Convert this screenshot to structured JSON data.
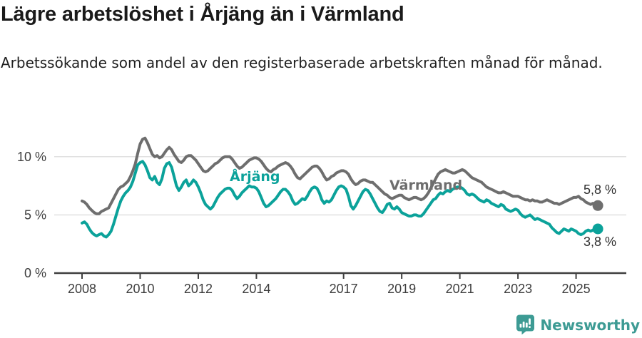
{
  "header": {
    "title": "Lägre arbetslöshet i Årjäng än i Värmland",
    "subtitle": "Arbetssökande som andel av den registerbaserade arbetskraften månad för månad."
  },
  "chart_data": {
    "type": "line",
    "title": "Lägre arbetslöshet i Årjäng än i Värmland",
    "xlabel": "",
    "ylabel": "",
    "x_start_year": 2008,
    "x_step": "monthly",
    "x_range_label": "2008-01 till 2025-10",
    "x_ticks": [
      2008,
      2010,
      2012,
      2014,
      2017,
      2019,
      2021,
      2023,
      2025
    ],
    "y_ticks": [
      0,
      5,
      10
    ],
    "y_tick_labels": [
      "0 %",
      "5 %",
      "10 %"
    ],
    "ylim": [
      0,
      12
    ],
    "grid": "horizontal",
    "legend_position": "inline-labels",
    "colors": {
      "grid": "#e0e0e0",
      "axis": "#3f3f3f",
      "tick_text": "#3d3d3d",
      "value_text": "#2e2e2e"
    },
    "series": [
      {
        "id": "varmland",
        "name": "Värmland",
        "color": "#6e6e6e",
        "end_label": "5,8 %",
        "end_value": 5.8,
        "values": [
          6.2,
          6.1,
          5.9,
          5.6,
          5.4,
          5.2,
          5.1,
          5.1,
          5.3,
          5.4,
          5.5,
          5.6,
          6.0,
          6.4,
          6.8,
          7.2,
          7.4,
          7.5,
          7.7,
          7.9,
          8.3,
          8.8,
          9.4,
          10.3,
          11.1,
          11.5,
          11.6,
          11.2,
          10.7,
          10.2,
          10.0,
          10.1,
          9.9,
          10.0,
          10.3,
          10.6,
          10.8,
          10.6,
          10.2,
          9.9,
          9.6,
          9.5,
          9.7,
          10.0,
          10.1,
          10.1,
          9.9,
          9.7,
          9.4,
          9.1,
          8.8,
          8.7,
          8.8,
          9.0,
          9.2,
          9.4,
          9.5,
          9.7,
          9.9,
          10.0,
          10.0,
          10.0,
          9.8,
          9.5,
          9.2,
          9.0,
          9.1,
          9.3,
          9.5,
          9.7,
          9.8,
          9.9,
          9.9,
          9.8,
          9.6,
          9.3,
          9.0,
          8.8,
          8.7,
          8.9,
          9.0,
          9.2,
          9.3,
          9.4,
          9.5,
          9.4,
          9.2,
          8.9,
          8.5,
          8.2,
          8.1,
          8.3,
          8.5,
          8.7,
          8.9,
          9.1,
          9.2,
          9.2,
          9.0,
          8.7,
          8.3,
          8.0,
          8.1,
          8.3,
          8.4,
          8.6,
          8.7,
          8.8,
          8.8,
          8.7,
          8.5,
          8.1,
          7.8,
          7.6,
          7.7,
          7.9,
          8.0,
          8.0,
          7.9,
          7.8,
          7.8,
          7.6,
          7.4,
          7.2,
          7.0,
          6.8,
          6.7,
          6.5,
          6.4,
          6.5,
          6.6,
          6.7,
          6.7,
          6.5,
          6.4,
          6.3,
          6.4,
          6.5,
          6.5,
          6.4,
          6.3,
          6.4,
          6.6,
          6.9,
          7.3,
          7.7,
          8.1,
          8.5,
          8.7,
          8.8,
          8.9,
          8.8,
          8.7,
          8.6,
          8.6,
          8.7,
          8.8,
          8.9,
          8.8,
          8.6,
          8.4,
          8.2,
          8.1,
          8.0,
          7.9,
          7.8,
          7.6,
          7.4,
          7.3,
          7.2,
          7.1,
          7.0,
          6.9,
          6.9,
          7.0,
          6.9,
          6.8,
          6.7,
          6.6,
          6.6,
          6.6,
          6.5,
          6.4,
          6.3,
          6.3,
          6.2,
          6.3,
          6.2,
          6.2,
          6.1,
          6.1,
          6.2,
          6.3,
          6.2,
          6.1,
          6.0,
          6.0,
          5.9,
          6.0,
          6.1,
          6.2,
          6.3,
          6.4,
          6.5,
          6.5,
          6.6,
          6.4,
          6.3,
          6.1,
          6.0,
          5.9,
          6.0,
          5.9,
          5.8
        ]
      },
      {
        "id": "arjang",
        "name": "Årjäng",
        "color": "#0ba29a",
        "end_label": "3,8 %",
        "end_value": 3.8,
        "values": [
          4.3,
          4.4,
          4.2,
          3.8,
          3.5,
          3.3,
          3.2,
          3.3,
          3.4,
          3.2,
          3.1,
          3.3,
          3.6,
          4.2,
          4.9,
          5.6,
          6.2,
          6.6,
          6.9,
          7.1,
          7.4,
          7.9,
          8.6,
          9.3,
          9.5,
          9.6,
          9.3,
          8.8,
          8.2,
          8.0,
          8.3,
          7.8,
          7.6,
          8.1,
          9.0,
          9.4,
          9.5,
          9.1,
          8.3,
          7.5,
          7.1,
          7.4,
          7.8,
          8.0,
          7.5,
          7.7,
          8.0,
          7.8,
          7.4,
          6.9,
          6.3,
          5.9,
          5.7,
          5.5,
          5.7,
          6.1,
          6.5,
          6.8,
          7.0,
          7.2,
          7.3,
          7.3,
          7.1,
          6.7,
          6.4,
          6.6,
          6.9,
          7.1,
          7.3,
          7.5,
          7.4,
          7.4,
          7.3,
          7.0,
          6.5,
          6.0,
          5.7,
          5.8,
          6.0,
          6.2,
          6.4,
          6.7,
          7.0,
          7.2,
          7.2,
          7.0,
          6.7,
          6.2,
          5.9,
          6.0,
          6.2,
          6.4,
          6.3,
          6.6,
          7.0,
          7.3,
          7.4,
          7.3,
          6.9,
          6.3,
          6.0,
          6.2,
          6.1,
          6.3,
          6.7,
          7.1,
          7.4,
          7.5,
          7.4,
          7.2,
          6.6,
          5.8,
          5.5,
          5.8,
          6.2,
          6.6,
          7.0,
          7.2,
          7.1,
          6.8,
          6.4,
          6.0,
          5.6,
          5.3,
          5.2,
          5.5,
          5.9,
          6.0,
          5.6,
          5.5,
          5.7,
          5.5,
          5.2,
          5.1,
          5.0,
          4.9,
          4.9,
          5.0,
          5.0,
          4.9,
          4.9,
          5.1,
          5.4,
          5.7,
          6.0,
          6.3,
          6.4,
          6.7,
          6.9,
          6.8,
          7.0,
          7.1,
          7.0,
          7.2,
          7.3,
          7.4,
          7.4,
          7.3,
          7.1,
          6.8,
          6.7,
          6.8,
          6.7,
          6.5,
          6.3,
          6.2,
          6.1,
          6.3,
          6.2,
          6.0,
          5.9,
          5.8,
          5.7,
          5.9,
          5.8,
          5.5,
          5.4,
          5.3,
          5.4,
          5.5,
          5.4,
          5.1,
          4.9,
          4.8,
          4.9,
          5.0,
          4.8,
          4.6,
          4.7,
          4.6,
          4.5,
          4.4,
          4.3,
          4.2,
          3.9,
          3.7,
          3.5,
          3.4,
          3.6,
          3.8,
          3.7,
          3.6,
          3.8,
          3.7,
          3.6,
          3.4,
          3.3,
          3.4,
          3.6,
          3.7,
          3.6,
          3.7,
          3.7,
          3.8
        ]
      }
    ]
  },
  "footer": {
    "brand": "Newsworthy",
    "brand_color": "#3d9b94"
  }
}
